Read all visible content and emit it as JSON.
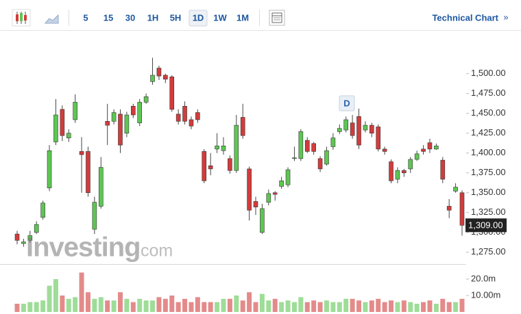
{
  "toolbar": {
    "intervals": [
      "5",
      "15",
      "30",
      "1H",
      "5H",
      "1D",
      "1W",
      "1M"
    ],
    "selected": "1D",
    "link": "Technical Chart",
    "link_arrow": "»"
  },
  "watermark": [
    "Investing",
    ".com"
  ],
  "chart_data": {
    "type": "candlestick",
    "up_color": "#5ec653",
    "down_color": "#d23c3c",
    "open": [
      1298,
      1286,
      1290,
      1300,
      1319,
      1356,
      1414,
      1455,
      1419,
      1442,
      1402,
      1402,
      1304,
      1333,
      1440,
      1440,
      1449,
      1425,
      1459,
      1438,
      1464,
      1490,
      1507,
      1498,
      1496,
      1449,
      1459,
      1442,
      1451,
      1402,
      1384,
      1405,
      1403,
      1393,
      1378,
      1445,
      1380,
      1339,
      1300,
      1338,
      1350,
      1358,
      1360,
      1393,
      1393,
      1416,
      1412,
      1393,
      1386,
      1408,
      1427,
      1429,
      1438,
      1446,
      1429,
      1435,
      1433,
      1405,
      1389,
      1367,
      1378,
      1380,
      1392,
      1405,
      1413,
      1405,
      1391,
      1333,
      1352,
      1350
    ],
    "high": [
      1302,
      1292,
      1302,
      1314,
      1340,
      1410,
      1468,
      1460,
      1430,
      1474,
      1420,
      1408,
      1345,
      1395,
      1462,
      1455,
      1455,
      1452,
      1462,
      1468,
      1475,
      1520,
      1510,
      1500,
      1498,
      1455,
      1465,
      1446,
      1455,
      1405,
      1400,
      1425,
      1420,
      1397,
      1448,
      1462,
      1383,
      1345,
      1336,
      1354,
      1352,
      1370,
      1382,
      1408,
      1430,
      1420,
      1414,
      1396,
      1408,
      1425,
      1436,
      1446,
      1448,
      1456,
      1440,
      1438,
      1436,
      1408,
      1392,
      1382,
      1380,
      1395,
      1403,
      1410,
      1418,
      1412,
      1395,
      1342,
      1362,
      1353
    ],
    "low": [
      1285,
      1282,
      1287,
      1298,
      1316,
      1352,
      1410,
      1415,
      1414,
      1438,
      1350,
      1345,
      1298,
      1330,
      1410,
      1436,
      1400,
      1420,
      1444,
      1434,
      1462,
      1486,
      1492,
      1488,
      1452,
      1436,
      1436,
      1430,
      1438,
      1362,
      1372,
      1400,
      1398,
      1374,
      1375,
      1418,
      1315,
      1322,
      1298,
      1334,
      1340,
      1355,
      1357,
      1390,
      1390,
      1400,
      1398,
      1376,
      1384,
      1404,
      1424,
      1426,
      1418,
      1405,
      1426,
      1420,
      1402,
      1398,
      1362,
      1362,
      1370,
      1375,
      1390,
      1398,
      1400,
      1404,
      1362,
      1318,
      1350,
      1296
    ],
    "close": [
      1290,
      1288,
      1296,
      1310,
      1337,
      1403,
      1448,
      1422,
      1425,
      1464,
      1398,
      1350,
      1338,
      1382,
      1435,
      1451,
      1410,
      1448,
      1448,
      1464,
      1471,
      1498,
      1497,
      1493,
      1455,
      1440,
      1440,
      1434,
      1442,
      1365,
      1380,
      1409,
      1409,
      1378,
      1435,
      1422,
      1328,
      1332,
      1330,
      1349,
      1348,
      1365,
      1379,
      1394,
      1427,
      1402,
      1402,
      1380,
      1403,
      1419,
      1431,
      1442,
      1422,
      1410,
      1435,
      1425,
      1405,
      1402,
      1365,
      1378,
      1375,
      1392,
      1399,
      1402,
      1405,
      1409,
      1367,
      1328,
      1357,
      1309
    ],
    "volume": [
      5,
      5,
      6,
      6,
      7,
      16,
      20,
      10,
      8,
      9,
      24,
      12,
      8,
      9,
      7,
      7,
      12,
      8,
      6,
      8,
      7,
      7,
      9,
      8,
      10,
      6,
      8,
      6,
      9,
      6,
      6,
      6,
      8,
      8,
      10,
      7,
      12,
      6,
      11,
      7,
      8,
      6,
      7,
      6,
      9,
      6,
      7,
      6,
      7,
      6,
      6,
      8,
      8,
      7,
      6,
      7,
      8,
      6,
      7,
      6,
      7,
      6,
      5,
      6,
      7,
      5,
      8,
      6,
      6,
      8
    ],
    "ylim": [
      1261,
      1554
    ],
    "yticks": [
      {
        "value": 1500,
        "label": "1,500.00"
      },
      {
        "value": 1475,
        "label": "1,475.00"
      },
      {
        "value": 1450,
        "label": "1,450.00"
      },
      {
        "value": 1425,
        "label": "1,425.00"
      },
      {
        "value": 1400,
        "label": "1,400.00"
      },
      {
        "value": 1375,
        "label": "1,375.00"
      },
      {
        "value": 1350,
        "label": "1,350.00"
      },
      {
        "value": 1325,
        "label": "1,325.00"
      },
      {
        "value": 1300,
        "label": "1,300.00"
      },
      {
        "value": 1275,
        "label": "1,275.00"
      }
    ],
    "volume_ylim": [
      0,
      28.75
    ],
    "volume_ticks": [
      {
        "value": 20,
        "label": "20.0m"
      },
      {
        "value": 10,
        "label": "10.00m"
      }
    ],
    "last_price_label": "1,309.00",
    "annotation": "D"
  }
}
